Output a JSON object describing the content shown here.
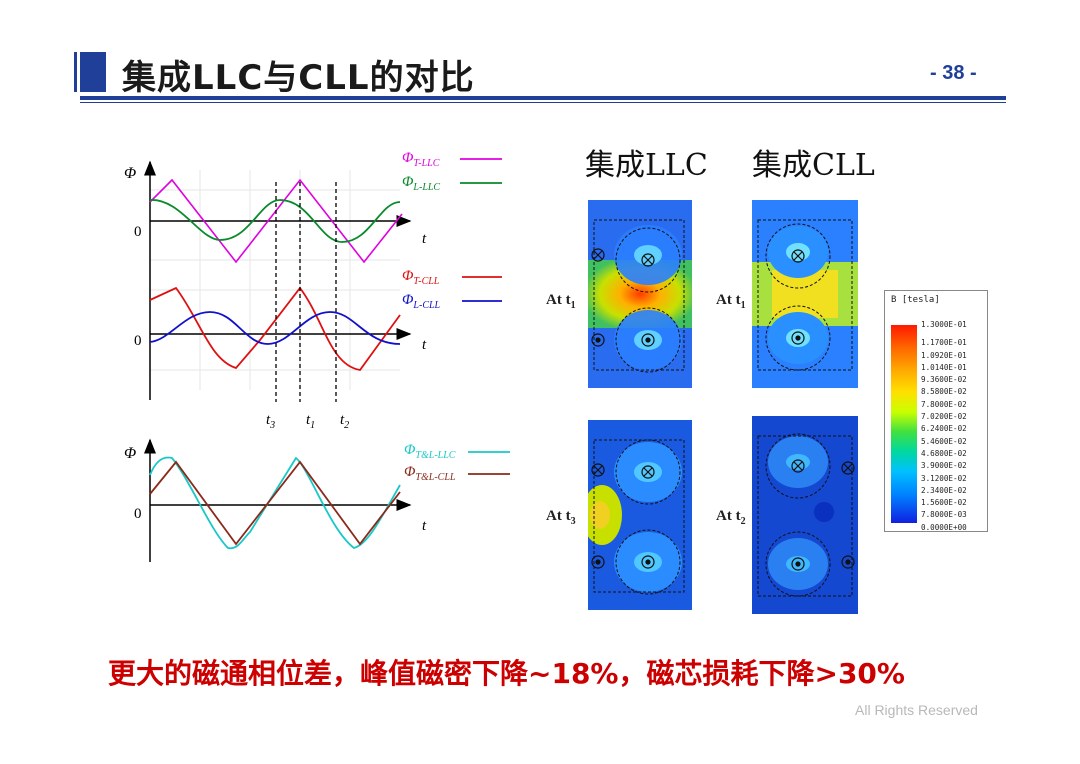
{
  "header": {
    "title": "集成LLC与CLL的对比",
    "page_number": "- 38 -"
  },
  "waveforms": {
    "axis_phi": "Φ",
    "axis_t": "t",
    "zero": "0",
    "legend_top": [
      {
        "sym": "Φ",
        "sub": "T-LLC",
        "color": "#e000e0"
      },
      {
        "sym": "Φ",
        "sub": "L-LLC",
        "color": "#0a8a2a"
      }
    ],
    "legend_mid": [
      {
        "sym": "Φ",
        "sub": "T-CLL",
        "color": "#dd1111"
      },
      {
        "sym": "Φ",
        "sub": "L-CLL",
        "color": "#1111cc"
      }
    ],
    "legend_bottom": [
      {
        "sym": "Φ",
        "sub": "T&L-LLC",
        "color": "#18c8c8"
      },
      {
        "sym": "Φ",
        "sub": "T&L-CLL",
        "color": "#8b2a1a"
      }
    ],
    "time_marks": [
      {
        "sym": "t",
        "sub": "3"
      },
      {
        "sym": "t",
        "sub": "1"
      },
      {
        "sym": "t",
        "sub": "2"
      }
    ]
  },
  "fields": {
    "heading_llc": "集成LLC",
    "heading_cll": "集成CLL",
    "labels": [
      {
        "text": "At t",
        "sub": "1"
      },
      {
        "text": "At t",
        "sub": "1"
      },
      {
        "text": "At t",
        "sub": "3"
      },
      {
        "text": "At t",
        "sub": "2"
      }
    ],
    "colorbar_title": "B [tesla]",
    "colorbar_ticks": [
      "1.3000E-01",
      "1.1700E-01",
      "1.0920E-01",
      "1.0140E-01",
      "9.3600E-02",
      "8.5800E-02",
      "7.8000E-02",
      "7.0200E-02",
      "6.2400E-02",
      "5.4600E-02",
      "4.6800E-02",
      "3.9000E-02",
      "3.1200E-02",
      "2.3400E-02",
      "1.5600E-02",
      "7.8000E-03",
      "0.0000E+00"
    ]
  },
  "summary": "更大的磁通相位差，峰值磁密下降~18%，磁芯损耗下降>30%",
  "footer": "All Rights Reserved"
}
